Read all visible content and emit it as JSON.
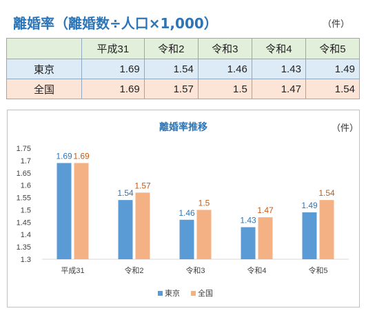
{
  "header": {
    "title": "離婚率（離婚数÷人口×1,000）",
    "unit": "（件）"
  },
  "table": {
    "columns": [
      "平成31",
      "令和2",
      "令和3",
      "令和4",
      "令和5"
    ],
    "rows": [
      {
        "label": "東京",
        "values": [
          "1.69",
          "1.54",
          "1.46",
          "1.43",
          "1.49"
        ]
      },
      {
        "label": "全国",
        "values": [
          "1.69",
          "1.57",
          "1.5",
          "1.47",
          "1.54"
        ]
      }
    ]
  },
  "chart_data": {
    "type": "bar",
    "title": "離婚率推移",
    "unit": "（件）",
    "categories": [
      "平成31",
      "令和2",
      "令和3",
      "令和4",
      "令和5"
    ],
    "series": [
      {
        "name": "東京",
        "values": [
          1.69,
          1.54,
          1.46,
          1.43,
          1.49
        ],
        "labels": [
          "1.69",
          "1.54",
          "1.46",
          "1.43",
          "1.49"
        ],
        "color": "#5b9bd5",
        "label_color": "#2e75b6"
      },
      {
        "name": "全国",
        "values": [
          1.69,
          1.57,
          1.5,
          1.47,
          1.54
        ],
        "labels": [
          "1.69",
          "1.57",
          "1.5",
          "1.47",
          "1.54"
        ],
        "color": "#f4b183",
        "label_color": "#c55a11"
      }
    ],
    "ylim": [
      1.3,
      1.75
    ],
    "yticks": [
      "1.75",
      "1.7",
      "1.65",
      "1.6",
      "1.55",
      "1.5",
      "1.45",
      "1.4",
      "1.35",
      "1.3"
    ],
    "grid": false,
    "legend": "bottom"
  }
}
